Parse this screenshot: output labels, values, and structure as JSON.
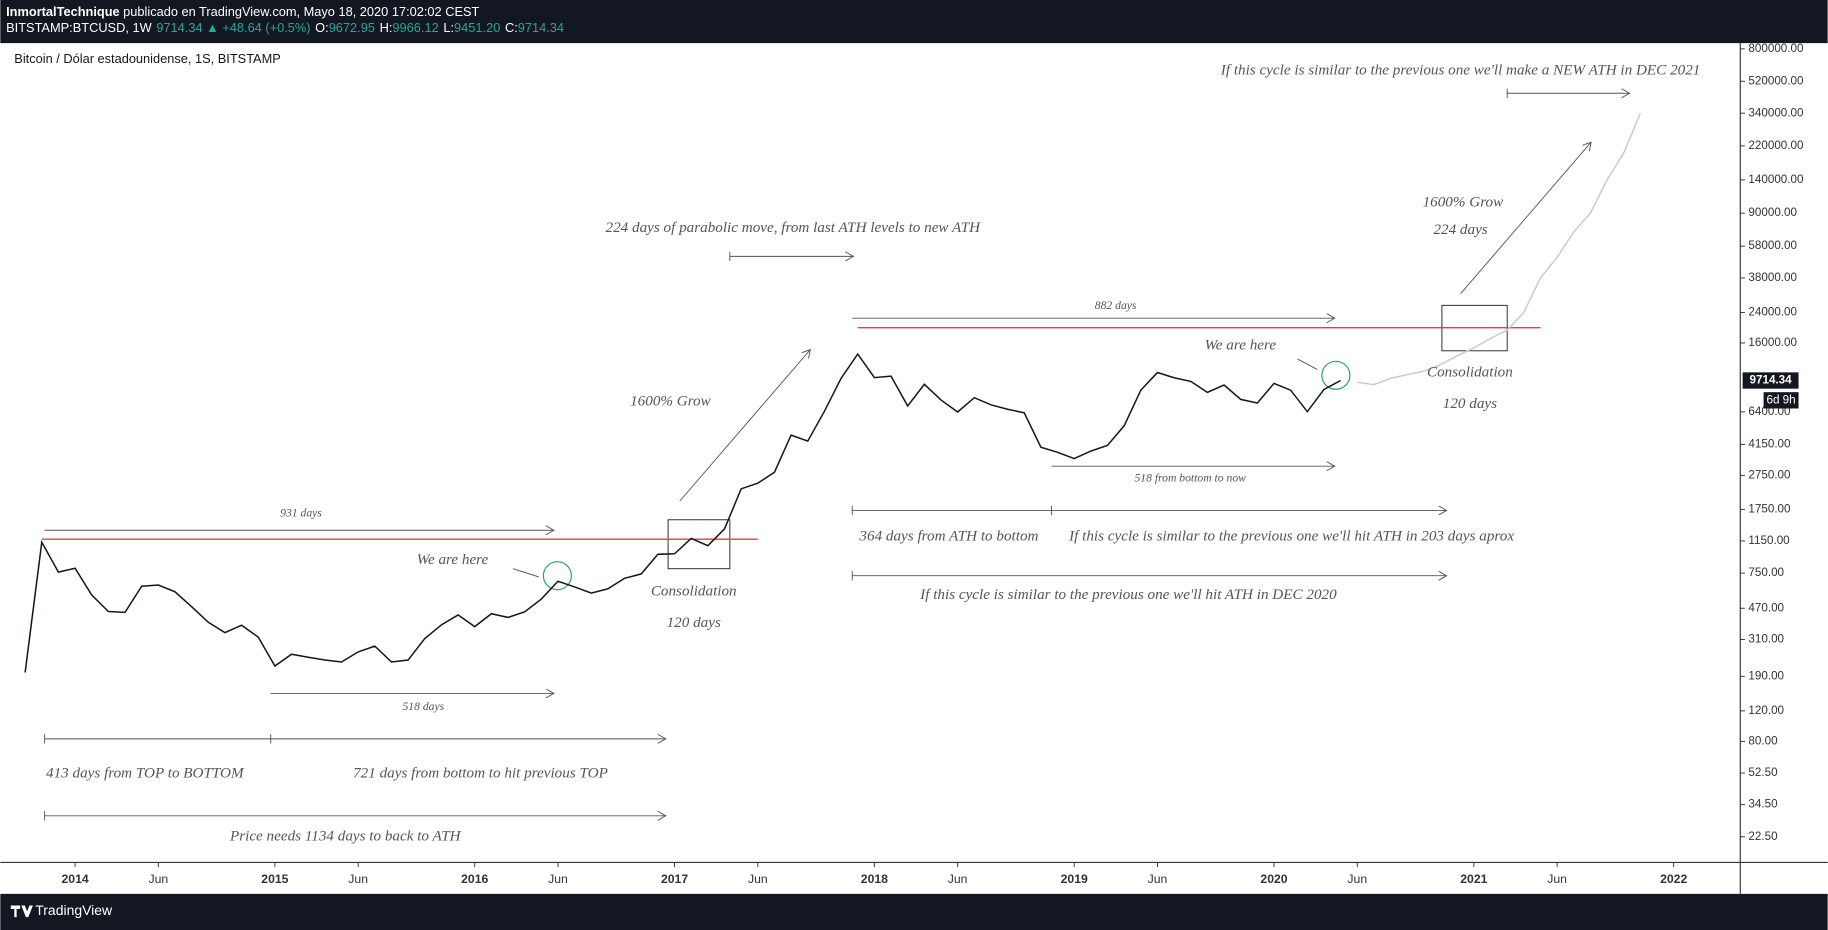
{
  "header": {
    "author": "InmortalTechnique",
    "published": "publicado en TradingView.com, Mayo 18, 2020 17:02:02 CEST",
    "symbol": "BITSTAMP:BTCUSD, 1W",
    "last": "9714.34",
    "change": "▲ +48.64 (+0.5%)",
    "ohlc": [
      {
        "label": "O:",
        "value": "9672.95"
      },
      {
        "label": "H:",
        "value": "9966.12"
      },
      {
        "label": "L:",
        "value": "9451.20"
      },
      {
        "label": "C:",
        "value": "9714.34"
      }
    ]
  },
  "footer": {
    "brand": "TradingView"
  },
  "chart_data": {
    "type": "line",
    "title": "Bitcoin / Dólar estadounidense, 1S, BITSTAMP",
    "log_scale": true,
    "grid": false,
    "x": [
      "2013-10",
      "2013-11",
      "2013-12",
      "2014-01",
      "2014-02",
      "2014-03",
      "2014-04",
      "2014-05",
      "2014-06",
      "2014-07",
      "2014-08",
      "2014-09",
      "2014-10",
      "2014-11",
      "2014-12",
      "2015-01",
      "2015-02",
      "2015-03",
      "2015-04",
      "2015-05",
      "2015-06",
      "2015-07",
      "2015-08",
      "2015-09",
      "2015-10",
      "2015-11",
      "2015-12",
      "2016-01",
      "2016-02",
      "2016-03",
      "2016-04",
      "2016-05",
      "2016-06",
      "2016-07",
      "2016-08",
      "2016-09",
      "2016-10",
      "2016-11",
      "2016-12",
      "2017-01",
      "2017-02",
      "2017-03",
      "2017-04",
      "2017-05",
      "2017-06",
      "2017-07",
      "2017-08",
      "2017-09",
      "2017-10",
      "2017-11",
      "2017-12",
      "2018-01",
      "2018-02",
      "2018-03",
      "2018-04",
      "2018-05",
      "2018-06",
      "2018-07",
      "2018-08",
      "2018-09",
      "2018-10",
      "2018-11",
      "2018-12",
      "2019-01",
      "2019-02",
      "2019-03",
      "2019-04",
      "2019-05",
      "2019-06",
      "2019-07",
      "2019-08",
      "2019-09",
      "2019-10",
      "2019-11",
      "2019-12",
      "2020-01",
      "2020-02",
      "2020-03",
      "2020-04",
      "2020-05",
      "2020-06",
      "2020-07",
      "2020-08",
      "2020-09",
      "2020-10",
      "2020-11",
      "2020-12",
      "2021-01",
      "2021-02",
      "2021-03",
      "2021-04",
      "2021-05",
      "2021-06",
      "2021-07",
      "2021-08",
      "2021-09",
      "2021-10",
      "2021-11"
    ],
    "series": [
      {
        "color": "#131722",
        "values": [
          200,
          1130,
          760,
          800,
          560,
          450,
          445,
          630,
          640,
          585,
          480,
          390,
          340,
          375,
          320,
          218,
          255,
          245,
          236,
          230,
          263,
          284,
          230,
          236,
          314,
          377,
          430,
          368,
          437,
          416,
          448,
          531,
          673,
          624,
          575,
          609,
          700,
          742,
          963,
          970,
          1190,
          1080,
          1350,
          2300,
          2480,
          2870,
          4700,
          4340,
          6450,
          10000,
          13800,
          10100,
          10300,
          6920,
          9240,
          7500,
          6390,
          7730,
          7030,
          6630,
          6320,
          4000,
          3740,
          3440,
          3800,
          4100,
          5320,
          8550,
          10800,
          10080,
          9600,
          8300,
          9150,
          7560,
          7200,
          9350,
          8540,
          6420,
          8630,
          9714.34,
          null,
          null,
          null,
          null,
          null,
          null,
          null,
          null,
          null,
          null,
          null,
          null,
          null,
          null,
          null,
          null,
          null,
          null
        ]
      },
      {
        "color": "#c8cbd2",
        "values": [
          null,
          null,
          null,
          null,
          null,
          null,
          null,
          null,
          null,
          null,
          null,
          null,
          null,
          null,
          null,
          null,
          null,
          null,
          null,
          null,
          null,
          null,
          null,
          null,
          null,
          null,
          null,
          null,
          null,
          null,
          null,
          null,
          null,
          null,
          null,
          null,
          null,
          null,
          null,
          null,
          null,
          null,
          null,
          null,
          null,
          null,
          null,
          null,
          null,
          null,
          null,
          null,
          null,
          null,
          null,
          null,
          null,
          null,
          null,
          null,
          null,
          null,
          null,
          null,
          null,
          null,
          null,
          null,
          null,
          null,
          null,
          null,
          null,
          null,
          null,
          null,
          null,
          null,
          null,
          null,
          9500,
          9200,
          10000,
          10500,
          11000,
          12000,
          13500,
          15000,
          17000,
          19000,
          24000,
          38000,
          50000,
          70000,
          90000,
          140000,
          200000,
          340000
        ]
      }
    ],
    "xlim": [
      "2013-09",
      "2022-05"
    ],
    "xticks": [
      {
        "value": "2014-01",
        "label": "2014"
      },
      {
        "value": "2014-06",
        "label": "Jun"
      },
      {
        "value": "2015-01",
        "label": "2015"
      },
      {
        "value": "2015-06",
        "label": "Jun"
      },
      {
        "value": "2016-01",
        "label": "2016"
      },
      {
        "value": "2016-06",
        "label": "Jun"
      },
      {
        "value": "2017-01",
        "label": "2017"
      },
      {
        "value": "2017-06",
        "label": "Jun"
      },
      {
        "value": "2018-01",
        "label": "2018"
      },
      {
        "value": "2018-06",
        "label": "Jun"
      },
      {
        "value": "2019-01",
        "label": "2019"
      },
      {
        "value": "2019-06",
        "label": "Jun"
      },
      {
        "value": "2020-01",
        "label": "2020"
      },
      {
        "value": "2020-06",
        "label": "Jun"
      },
      {
        "value": "2021-01",
        "label": "2021"
      },
      {
        "value": "2021-06",
        "label": "Jun"
      },
      {
        "value": "2022-01",
        "label": "2022"
      }
    ],
    "ylim": [
      16,
      850000
    ],
    "yticks": [
      {
        "value": 800000,
        "label": "800000.00"
      },
      {
        "value": 520000,
        "label": "520000.00"
      },
      {
        "value": 340000,
        "label": "340000.00"
      },
      {
        "value": 220000,
        "label": "220000.00"
      },
      {
        "value": 140000,
        "label": "140000.00"
      },
      {
        "value": 90000,
        "label": "90000.00"
      },
      {
        "value": 58000,
        "label": "58000.00"
      },
      {
        "value": 38000,
        "label": "38000.00"
      },
      {
        "value": 24000,
        "label": "24000.00"
      },
      {
        "value": 16000,
        "label": "16000.00"
      },
      {
        "value": 6400,
        "label": "6400.00"
      },
      {
        "value": 4150,
        "label": "4150.00"
      },
      {
        "value": 2750,
        "label": "2750.00"
      },
      {
        "value": 1750,
        "label": "1750.00"
      },
      {
        "value": 1150,
        "label": "1150.00"
      },
      {
        "value": 750,
        "label": "750.00"
      },
      {
        "value": 470,
        "label": "470.00"
      },
      {
        "value": 310,
        "label": "310.00"
      },
      {
        "value": 190,
        "label": "190.00"
      },
      {
        "value": 120,
        "label": "120.00"
      },
      {
        "value": 80,
        "label": "80.00"
      },
      {
        "value": 52.5,
        "label": "52.50"
      },
      {
        "value": 34.5,
        "label": "34.50"
      },
      {
        "value": 22.5,
        "label": "22.50"
      }
    ],
    "countdown": "6d 9h",
    "reference_lines": [
      {
        "value": 1177,
        "x_start": "2013-11",
        "x_end": "2017-06",
        "color": "#f23645"
      },
      {
        "value": 19600,
        "x_start": "2017-12",
        "x_end": "2021-05",
        "color": "#f23645"
      }
    ],
    "annotations": [
      "If this cycle is similar to the previous one we'll make a NEW ATH in DEC 2021",
      "224 days of parabolic move, from last ATH levels to new ATH",
      "1600% Grow",
      "224 days",
      "1600% Grow",
      "882 days",
      "We are here",
      "Consolidation",
      "120 days",
      "518 from bottom to now",
      "364 days from ATH to bottom",
      "If this cycle is similar to the previous one we'll hit ATH in 203 days aprox",
      "If this cycle is similar to the previous one we'll hit ATH in DEC 2020",
      "931 days",
      "We are here",
      "Consolidation",
      "120 days",
      "518 days",
      "413 days from TOP to BOTTOM",
      "721 days from bottom to hit previous TOP",
      "Price needs 1134 days to back to ATH"
    ]
  }
}
